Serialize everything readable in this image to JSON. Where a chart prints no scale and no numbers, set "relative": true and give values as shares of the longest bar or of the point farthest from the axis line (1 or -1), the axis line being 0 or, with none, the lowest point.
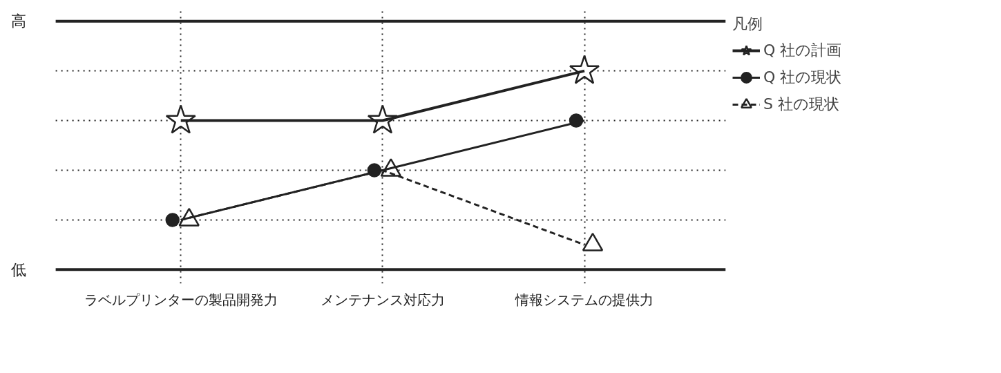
{
  "chart_data": {
    "type": "line",
    "relative": true,
    "legend_title": "凡例",
    "legend": "top right",
    "categories": [
      "ラベルプリンターの製品開発力",
      "メンテナンス対応力",
      "情報システムの提供力"
    ],
    "annotations": [
      "高",
      "低"
    ],
    "grid": true,
    "series": [
      {
        "name": "Q 社の計画",
        "color": "#222222",
        "marker": "star",
        "line_style": "solid",
        "values": [
          0.75,
          0.75,
          1
        ]
      },
      {
        "name": "Q 社の現状",
        "color": "#222222",
        "marker": "circle",
        "line_style": "solid",
        "values": [
          0.25,
          0.5,
          0.75
        ]
      },
      {
        "name": "S 社の現状",
        "color": "#222222",
        "marker": "triangle",
        "line_style": "dashed",
        "values": [
          0.25,
          0.5,
          0.125
        ]
      }
    ]
  }
}
